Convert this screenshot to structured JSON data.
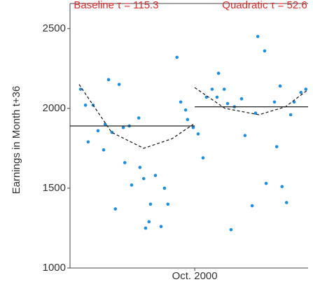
{
  "chart_data": {
    "type": "scatter",
    "y_label": "Earnings in Month t+36",
    "annotations": [
      {
        "text": "Baseline τ = 115.3",
        "color": "#e02a2a"
      },
      {
        "text": "Quadratic τ = 52.6",
        "color": "#e02a2a"
      }
    ],
    "xlim": [
      -33,
      30
    ],
    "xticks": [
      {
        "value": 0,
        "label": "Oct. 2000"
      }
    ],
    "ylim": [
      1000,
      2600
    ],
    "yticks": [
      1000,
      1500,
      2000,
      2500
    ],
    "color": "#1e8fe0",
    "x": [
      -30.2,
      -28.9,
      -26.9,
      -28.2,
      -25.6,
      -24.1,
      -22.8,
      -20.0,
      -18.9,
      -21.9,
      -23.7,
      -17.3,
      -14.8,
      -21.0,
      -18.5,
      -16.7,
      -14.5,
      -13.5,
      -11.7,
      -12.1,
      -13.0,
      -10.4,
      -8.9,
      -8.0,
      -7.1,
      -4.7,
      -3.7,
      -2.4,
      -1.9,
      -0.4,
      0.9,
      2.2,
      3.1,
      4.6,
      5.9,
      6.3,
      7.8,
      8.7,
      10.5,
      9.6,
      12.4,
      13.3,
      15.2,
      16.1,
      16.7,
      18.5,
      18.9,
      21.1,
      21.7,
      22.6,
      23.1,
      24.3,
      25.4,
      26.3,
      28.1,
      29.4
    ],
    "values": [
      2120,
      2020,
      2020,
      1790,
      1860,
      1740,
      2180,
      2150,
      1880,
      1850,
      1900,
      1890,
      1940,
      1370,
      1660,
      1520,
      1630,
      1560,
      1400,
      1290,
      1250,
      1580,
      1260,
      1500,
      1400,
      2320,
      2040,
      1990,
      1930,
      1880,
      1840,
      1690,
      2070,
      2120,
      2070,
      2220,
      2120,
      2030,
      2010,
      1240,
      2060,
      1830,
      1390,
      1970,
      2450,
      2360,
      1530,
      2040,
      1760,
      2140,
      1510,
      1410,
      1960,
      2040,
      2100,
      2120
    ],
    "fits": [
      {
        "x": [
          -33,
          0
        ],
        "values": [
          1890,
          1890
        ],
        "color": "#222",
        "dash": false
      },
      {
        "x": [
          0,
          30
        ],
        "values": [
          2010,
          2010
        ],
        "color": "#222",
        "dash": false
      },
      {
        "x": [
          -30.6,
          -22,
          -13.5,
          -6,
          -0.4
        ],
        "values": [
          2150,
          1850,
          1750,
          1810,
          1900
        ],
        "color": "#222",
        "dash": true
      },
      {
        "x": [
          0,
          8,
          17,
          24,
          29.6
        ],
        "values": [
          2130,
          2000,
          1960,
          2010,
          2110
        ],
        "color": "#222",
        "dash": true
      }
    ]
  }
}
